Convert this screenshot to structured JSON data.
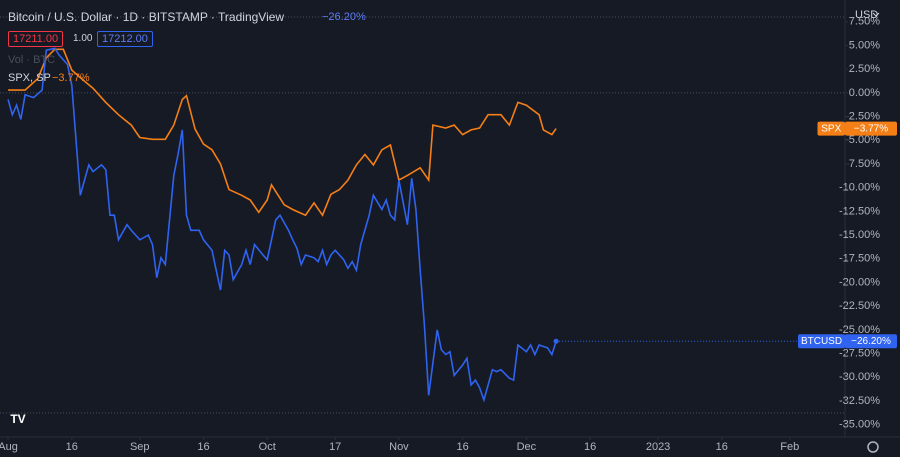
{
  "header": {
    "title": "Bitcoin / U.S. Dollar · 1D · BITSTAMP · TradingView",
    "change": "−26.20%",
    "bid": "17211.00",
    "spread": "1.00",
    "ask": "17212.00",
    "volume": "Vol · BTC",
    "compare_symbol": "SPX, SP",
    "compare_change": "−3.77%",
    "currency": "USD",
    "logo": "TV"
  },
  "chart_data": {
    "type": "line",
    "xlim": [
      -1.9,
      197
    ],
    "ylim": [
      -36.3,
      9.8
    ],
    "xticks": [
      {
        "value": 0,
        "label": "Aug"
      },
      {
        "value": 15,
        "label": "16"
      },
      {
        "value": 31,
        "label": "Sep"
      },
      {
        "value": 46,
        "label": "16"
      },
      {
        "value": 61,
        "label": "Oct"
      },
      {
        "value": 77,
        "label": "17"
      },
      {
        "value": 92,
        "label": "Nov"
      },
      {
        "value": 107,
        "label": "16"
      },
      {
        "value": 122,
        "label": "Dec"
      },
      {
        "value": 137,
        "label": "16"
      },
      {
        "value": 153,
        "label": "2023"
      },
      {
        "value": 168,
        "label": "16"
      },
      {
        "value": 184,
        "label": "Feb"
      }
    ],
    "yticks": [
      {
        "value": 7.5,
        "label": "7.50%"
      },
      {
        "value": 5,
        "label": "5.00%"
      },
      {
        "value": 2.5,
        "label": "2.50%"
      },
      {
        "value": 0,
        "label": "0.00%"
      },
      {
        "value": -2.5,
        "label": "-2.50%"
      },
      {
        "value": -5,
        "label": "-5.00%"
      },
      {
        "value": -7.5,
        "label": "-7.50%"
      },
      {
        "value": -10,
        "label": "-10.00%"
      },
      {
        "value": -12.5,
        "label": "-12.50%"
      },
      {
        "value": -15,
        "label": "-15.00%"
      },
      {
        "value": -17.5,
        "label": "-17.50%"
      },
      {
        "value": -20,
        "label": "-20.00%"
      },
      {
        "value": -22.5,
        "label": "-22.50%"
      },
      {
        "value": -25,
        "label": "-25.00%"
      },
      {
        "value": -27.5,
        "label": "-27.50%"
      },
      {
        "value": -30,
        "label": "-30.00%"
      },
      {
        "value": -32.5,
        "label": "-32.50%"
      },
      {
        "value": -35,
        "label": "-35.00%"
      }
    ],
    "series": [
      {
        "name": "SPX",
        "color": "#f57f17",
        "last_label": "−3.77%",
        "x": [
          0,
          4,
          7,
          9,
          11,
          13,
          15,
          17,
          20,
          23,
          26,
          29,
          31,
          34,
          37,
          39,
          41,
          42,
          44,
          46,
          48,
          50,
          52,
          55,
          57,
          59,
          61,
          62,
          65,
          67,
          70,
          72,
          74,
          76,
          78,
          80,
          82,
          84,
          86,
          88,
          90,
          92,
          94,
          97,
          99,
          100,
          103,
          105,
          107,
          109,
          111,
          113,
          116,
          118,
          120,
          122,
          125,
          126,
          128,
          129
        ],
        "values": [
          0.3,
          0.3,
          1.5,
          3.7,
          4.6,
          4.6,
          2.4,
          1.6,
          0.5,
          -1.0,
          -2.3,
          -3.4,
          -4.7,
          -4.9,
          -4.9,
          -3.4,
          -0.7,
          -0.3,
          -3.8,
          -5.4,
          -6.0,
          -7.5,
          -10.2,
          -10.8,
          -11.3,
          -12.6,
          -11.3,
          -9.7,
          -11.8,
          -12.3,
          -12.9,
          -11.6,
          -12.9,
          -10.7,
          -10.2,
          -9.2,
          -7.6,
          -6.5,
          -7.6,
          -6.0,
          -5.5,
          -9.2,
          -8.7,
          -7.9,
          -9.2,
          -3.4,
          -3.7,
          -3.4,
          -4.4,
          -3.9,
          -3.7,
          -2.3,
          -2.3,
          -3.4,
          -1.0,
          -1.3,
          -2.3,
          -3.9,
          -4.4,
          -3.77
        ]
      },
      {
        "name": "BTCUSD",
        "color": "#2f63f0",
        "last_label": "−26.20%",
        "x": [
          0,
          1,
          2,
          3,
          4,
          6,
          8,
          9,
          11,
          12,
          14,
          15,
          17,
          18,
          19,
          20,
          22,
          23,
          24,
          25,
          26,
          28,
          29,
          31,
          33,
          34,
          35,
          36,
          37,
          39,
          40,
          41,
          42,
          43,
          45,
          46,
          48,
          49,
          50,
          51,
          52,
          53,
          55,
          56,
          57,
          58,
          60,
          61,
          62,
          63,
          64,
          66,
          67,
          68,
          69,
          70,
          72,
          73,
          74,
          75,
          76,
          77,
          79,
          80,
          81,
          82,
          83,
          85,
          86,
          88,
          89,
          90,
          91,
          92,
          94,
          95,
          96,
          97,
          98,
          99,
          101,
          102,
          103,
          104,
          105,
          107,
          108,
          109,
          110,
          111,
          112,
          114,
          115,
          116,
          118,
          119,
          120,
          122,
          123,
          124,
          125,
          127,
          128,
          129
        ],
        "values": [
          -0.7,
          -2.3,
          -1.3,
          -2.8,
          -0.2,
          -0.5,
          0.3,
          4.5,
          4.7,
          4.0,
          3.0,
          0.8,
          -10.8,
          -9.2,
          -7.6,
          -8.3,
          -7.6,
          -8.1,
          -12.9,
          -12.9,
          -15.5,
          -13.9,
          -14.5,
          -15.5,
          -15.0,
          -16.0,
          -19.5,
          -17.4,
          -18.1,
          -8.7,
          -6.5,
          -3.9,
          -12.9,
          -14.5,
          -14.5,
          -15.5,
          -16.6,
          -18.7,
          -20.8,
          -16.6,
          -17.1,
          -19.7,
          -18.1,
          -16.6,
          -18.1,
          -16.0,
          -17.1,
          -17.6,
          -15.5,
          -13.4,
          -12.9,
          -14.5,
          -15.5,
          -16.4,
          -18.1,
          -17.1,
          -17.4,
          -17.8,
          -16.6,
          -18.1,
          -17.1,
          -16.6,
          -17.6,
          -18.5,
          -17.8,
          -18.7,
          -16.0,
          -12.9,
          -10.8,
          -12.3,
          -11.3,
          -12.9,
          -13.4,
          -9.2,
          -13.9,
          -9.0,
          -12.3,
          -18.7,
          -24.5,
          -31.9,
          -25.0,
          -27.1,
          -27.6,
          -27.3,
          -29.8,
          -28.7,
          -28.0,
          -30.8,
          -30.3,
          -31.1,
          -32.4,
          -29.2,
          -29.4,
          -29.2,
          -30.1,
          -30.3,
          -26.6,
          -27.3,
          -26.6,
          -27.6,
          -26.6,
          -26.9,
          -27.6,
          -26.2
        ]
      }
    ]
  }
}
